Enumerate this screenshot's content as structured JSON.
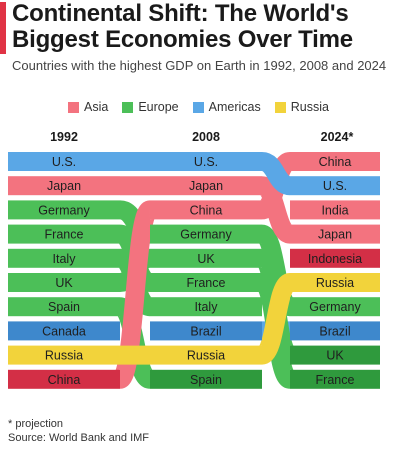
{
  "header": {
    "title": "Continental Shift: The World's Biggest Economies Over Time",
    "subtitle": "Countries with the highest GDP on Earth in 1992, 2008 and 2024"
  },
  "footer": {
    "note": "* projection",
    "source": "Source: World Bank and IMF"
  },
  "colors": {
    "accent": "#e03345",
    "Asia": "#f3737f",
    "Europe": "#4cbf58",
    "Americas": "#5aa7e6",
    "Russia": "#f2d33b",
    "Asia_dark": "#d32f46",
    "Europe_dark": "#2f9a3d",
    "Americas_dark": "#3e88cc"
  },
  "chart_data": {
    "type": "bump",
    "title": "Continental Shift: The World's Biggest Economies Over Time",
    "subtitle": "Countries with the highest GDP on Earth in 1992, 2008 and 2024",
    "columns": [
      "1992",
      "2008",
      "2024*"
    ],
    "legend": [
      "Asia",
      "Europe",
      "Americas",
      "Russia"
    ],
    "legend_placement": "top",
    "rankings": [
      [
        "U.S.",
        "Japan",
        "Germany",
        "France",
        "Italy",
        "UK",
        "Spain",
        "Canada",
        "Russia",
        "China"
      ],
      [
        "U.S.",
        "Japan",
        "China",
        "Germany",
        "UK",
        "France",
        "Italy",
        "Brazil",
        "Russia",
        "Spain"
      ],
      [
        "China",
        "U.S.",
        "India",
        "Japan",
        "Indonesia",
        "Russia",
        "Germany",
        "Brazil",
        "UK",
        "France"
      ]
    ],
    "countries": [
      {
        "name": "U.S.",
        "region": "Americas",
        "ranks": [
          1,
          1,
          2
        ]
      },
      {
        "name": "Japan",
        "region": "Asia",
        "ranks": [
          2,
          2,
          4
        ]
      },
      {
        "name": "Germany",
        "region": "Europe",
        "ranks": [
          3,
          4,
          7
        ]
      },
      {
        "name": "France",
        "region": "Europe",
        "ranks": [
          4,
          6,
          10
        ]
      },
      {
        "name": "Italy",
        "region": "Europe",
        "ranks": [
          5,
          7,
          null
        ]
      },
      {
        "name": "UK",
        "region": "Europe",
        "ranks": [
          6,
          5,
          9
        ]
      },
      {
        "name": "Spain",
        "region": "Europe",
        "ranks": [
          7,
          10,
          null
        ]
      },
      {
        "name": "Canada",
        "region": "Americas",
        "ranks": [
          8,
          null,
          null
        ]
      },
      {
        "name": "Russia",
        "region": "Russia",
        "ranks": [
          9,
          9,
          6
        ]
      },
      {
        "name": "China",
        "region": "Asia",
        "ranks": [
          10,
          3,
          1
        ]
      },
      {
        "name": "Brazil",
        "region": "Americas",
        "ranks": [
          null,
          8,
          8
        ]
      },
      {
        "name": "India",
        "region": "Asia",
        "ranks": [
          null,
          null,
          3
        ]
      },
      {
        "name": "Indonesia",
        "region": "Asia",
        "ranks": [
          null,
          null,
          5
        ]
      }
    ]
  }
}
